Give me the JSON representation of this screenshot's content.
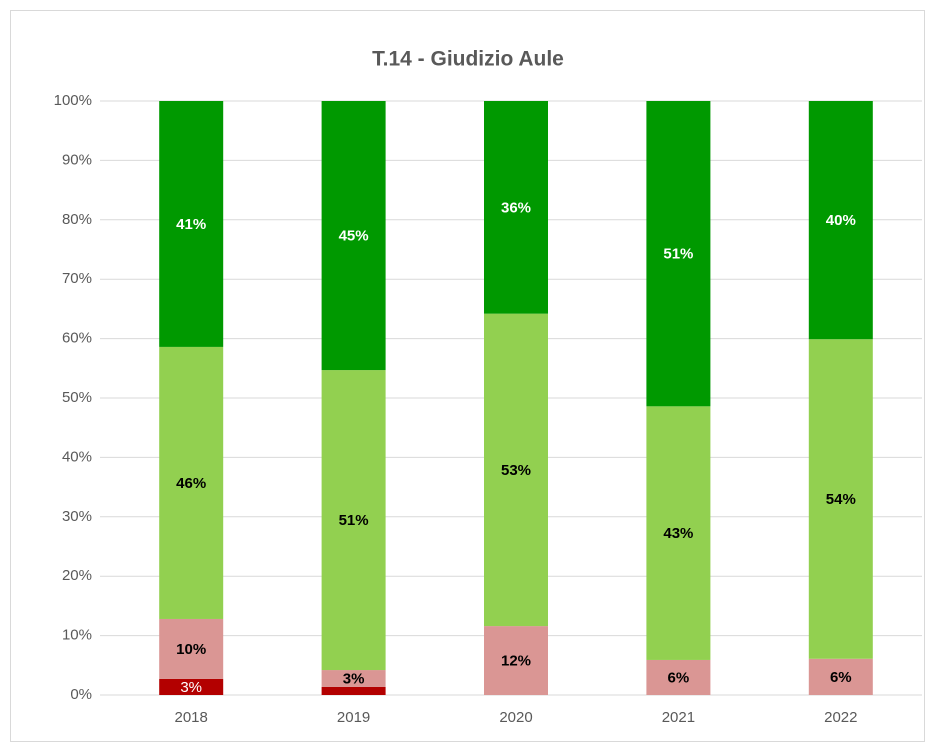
{
  "chart_data": {
    "type": "stacked_bar",
    "title": "T.14 - Giudizio Aule",
    "categories": [
      "2018",
      "2019",
      "2020",
      "2021",
      "2022"
    ],
    "series": [
      {
        "color": "#b30000",
        "label_color": "#ffffff",
        "values": [
          2.7,
          1.35,
          0,
          0,
          0
        ],
        "value_labels": [
          "3%",
          null,
          null,
          null,
          null
        ]
      },
      {
        "color": "#da9694",
        "label_color": "#000000",
        "values": [
          10.1,
          2.85,
          11.6,
          5.9,
          6.1
        ],
        "value_labels": [
          "10%",
          "3%",
          "12%",
          "6%",
          "6%"
        ]
      },
      {
        "color": "#92d050",
        "label_color": "#000000",
        "values": [
          45.8,
          50.5,
          52.6,
          42.7,
          53.8
        ],
        "value_labels": [
          "46%",
          "51%",
          "53%",
          "43%",
          "54%"
        ]
      },
      {
        "color": "#009900",
        "label_color": "#ffffff",
        "values": [
          41.4,
          45.3,
          35.8,
          51.4,
          40.1
        ],
        "value_labels": [
          "41%",
          "45%",
          "36%",
          "51%",
          "40%"
        ]
      }
    ],
    "ylim": [
      0,
      100
    ],
    "yticks": [
      {
        "value": 0,
        "label": "0%"
      },
      {
        "value": 10,
        "label": "10%"
      },
      {
        "value": 20,
        "label": "20%"
      },
      {
        "value": 30,
        "label": "30%"
      },
      {
        "value": 40,
        "label": "40%"
      },
      {
        "value": 50,
        "label": "50%"
      },
      {
        "value": 60,
        "label": "60%"
      },
      {
        "value": 70,
        "label": "70%"
      },
      {
        "value": 80,
        "label": "80%"
      },
      {
        "value": 90,
        "label": "90%"
      },
      {
        "value": 100,
        "label": "100%"
      }
    ],
    "grid": true
  }
}
